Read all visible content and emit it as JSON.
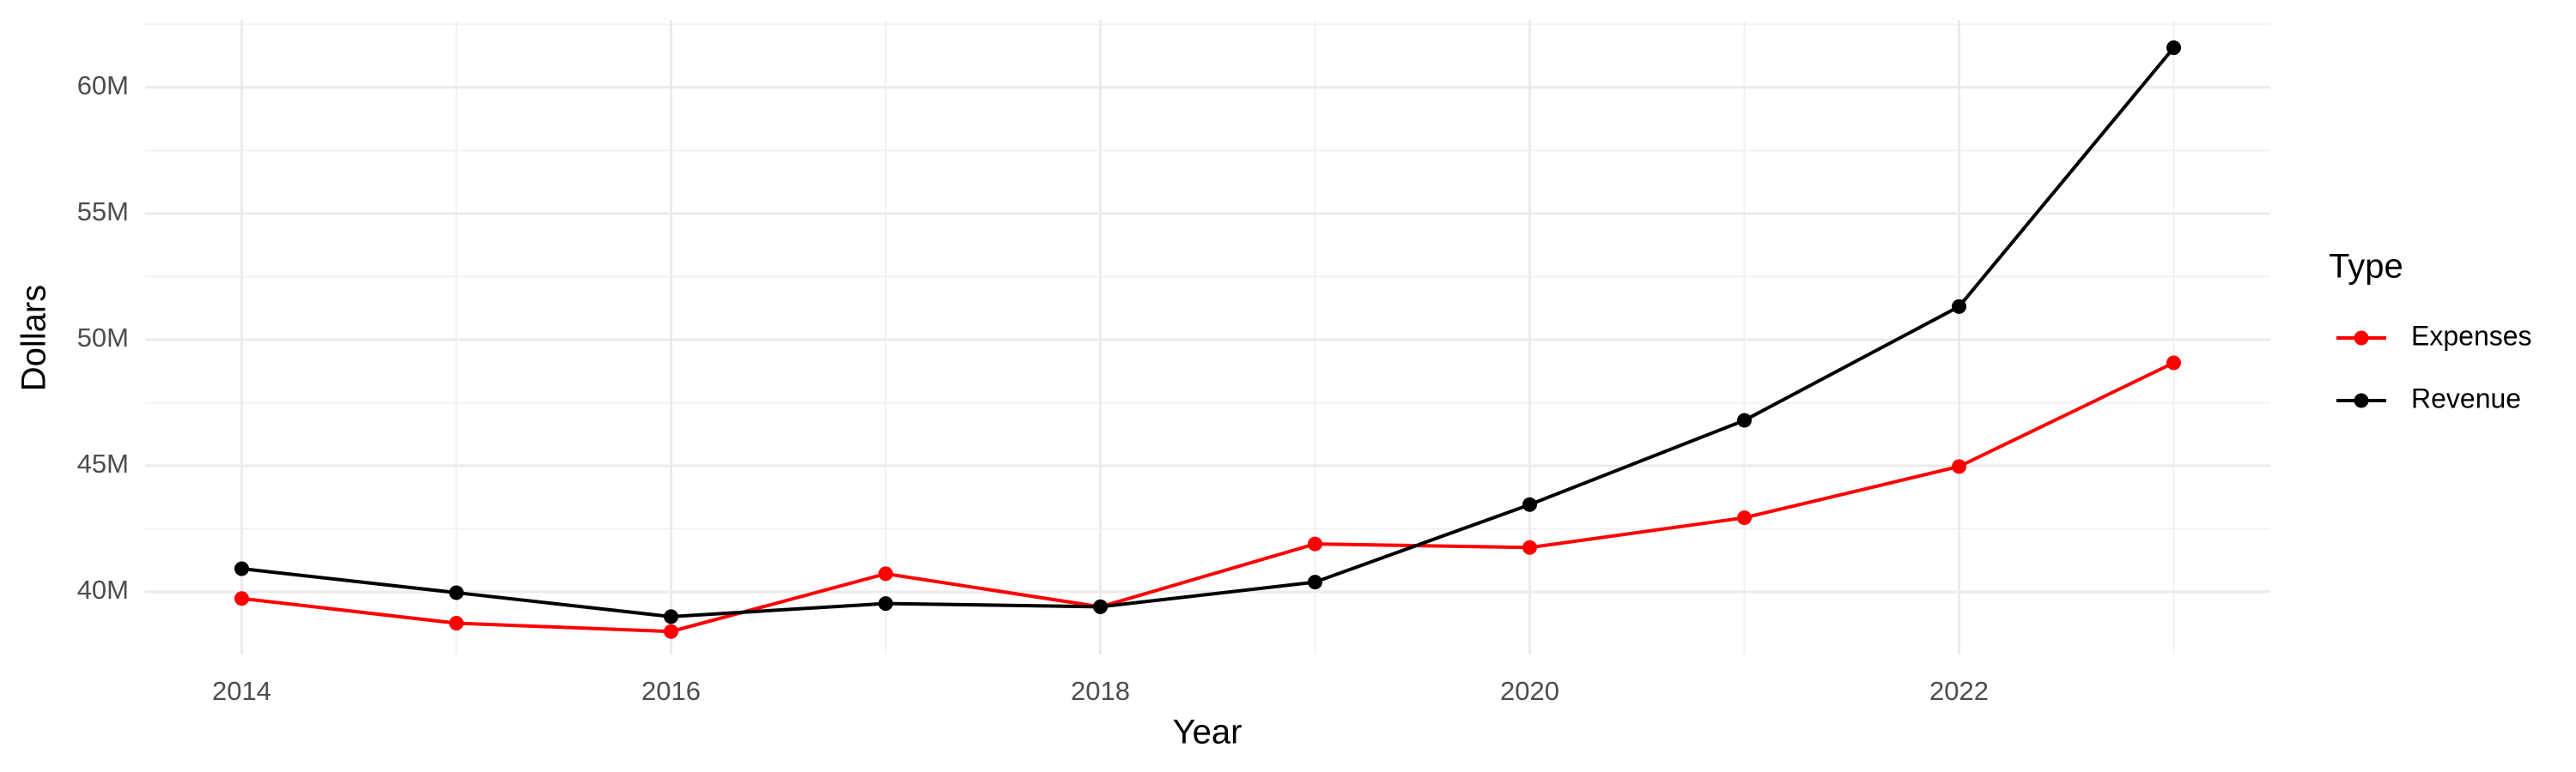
{
  "chart_data": {
    "type": "line",
    "x_label": "Year",
    "y_label": "Dollars",
    "legend_title": "Type",
    "legend_position": "right",
    "grid": true,
    "x": [
      2014,
      2015,
      2016,
      2017,
      2018,
      2019,
      2020,
      2021,
      2022,
      2023
    ],
    "series": [
      {
        "name": "Expenses",
        "color": "#ff0000",
        "values": [
          39740000,
          38760000,
          38430000,
          40720000,
          39410000,
          41900000,
          41760000,
          42940000,
          44970000,
          49080000
        ]
      },
      {
        "name": "Revenue",
        "color": "#000000",
        "values": [
          40920000,
          39970000,
          39020000,
          39540000,
          39410000,
          40390000,
          43460000,
          46800000,
          51310000,
          61570000
        ]
      }
    ],
    "xlim": [
      2013.55,
      2023.45
    ],
    "xticks": [
      2014,
      2016,
      2018,
      2020,
      2022
    ],
    "ylim": [
      37520000,
      62680000
    ],
    "yticks": [
      {
        "value": 40000000,
        "label": "40M"
      },
      {
        "value": 45000000,
        "label": "45M"
      },
      {
        "value": 50000000,
        "label": "50M"
      },
      {
        "value": 55000000,
        "label": "55M"
      },
      {
        "value": 60000000,
        "label": "60M"
      }
    ]
  }
}
